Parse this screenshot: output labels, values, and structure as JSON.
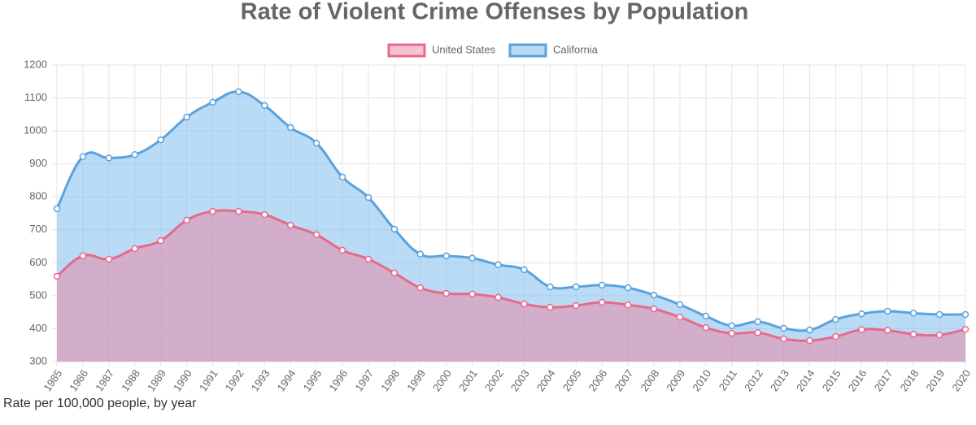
{
  "chart_data": {
    "type": "area",
    "title": "Rate of Violent Crime Offenses by Population",
    "caption": "Rate per 100,000 people, by year",
    "categories": [
      "1985",
      "1986",
      "1987",
      "1988",
      "1989",
      "1990",
      "1991",
      "1992",
      "1993",
      "1994",
      "1995",
      "1996",
      "1997",
      "1998",
      "1999",
      "2000",
      "2001",
      "2002",
      "2003",
      "2004",
      "2005",
      "2006",
      "2007",
      "2008",
      "2009",
      "2010",
      "2011",
      "2012",
      "2013",
      "2014",
      "2015",
      "2016",
      "2017",
      "2018",
      "2019",
      "2020"
    ],
    "series": [
      {
        "name": "United States",
        "color": "#e8698a",
        "fill": "rgba(240,120,150,0.45)",
        "values": [
          559,
          621,
          611,
          643,
          667,
          729,
          756,
          756,
          746,
          714,
          685,
          638,
          611,
          569,
          524,
          507,
          505,
          495,
          475,
          465,
          470,
          480,
          472,
          460,
          435,
          403,
          386,
          388,
          369,
          364,
          376,
          397,
          395,
          383,
          381,
          398
        ]
      },
      {
        "name": "California",
        "color": "#5aa2dc",
        "fill": "rgba(140,195,240,0.6)",
        "values": [
          764,
          922,
          918,
          928,
          973,
          1042,
          1087,
          1119,
          1077,
          1010,
          963,
          860,
          798,
          702,
          626,
          621,
          614,
          594,
          579,
          527,
          527,
          532,
          524,
          502,
          473,
          438,
          409,
          421,
          401,
          396,
          428,
          445,
          453,
          447,
          443,
          443
        ]
      }
    ],
    "ylim": [
      300,
      1200
    ],
    "yticks": [
      300,
      400,
      500,
      600,
      700,
      800,
      900,
      1000,
      1100,
      1200
    ],
    "grid": true
  }
}
